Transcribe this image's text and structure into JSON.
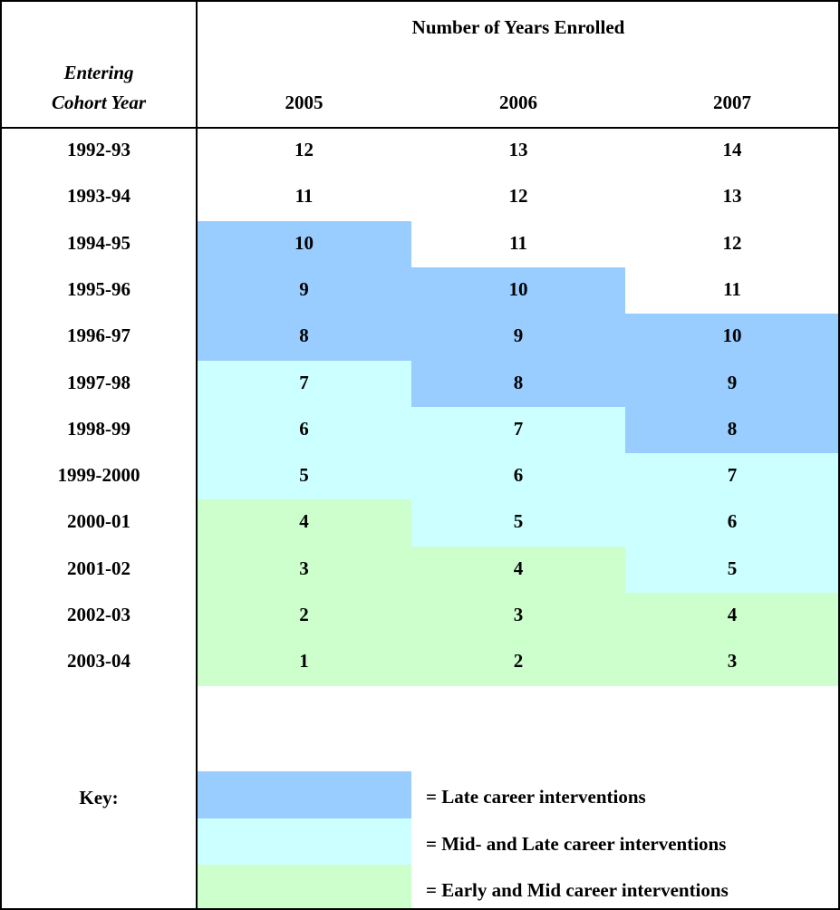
{
  "header": {
    "title": "Number of Years Enrolled",
    "row_header": [
      "Entering",
      "Cohort Year"
    ],
    "columns": [
      "2005",
      "2006",
      "2007"
    ]
  },
  "table": {
    "rows": [
      {
        "cohort": "1992-93",
        "values": [
          12,
          13,
          14
        ],
        "colors": [
          "#ffffff",
          "#ffffff",
          "#ffffff"
        ]
      },
      {
        "cohort": "1993-94",
        "values": [
          11,
          12,
          13
        ],
        "colors": [
          "#ffffff",
          "#ffffff",
          "#ffffff"
        ]
      },
      {
        "cohort": "1994-95",
        "values": [
          10,
          11,
          12
        ],
        "colors": [
          "#99ccff",
          "#ffffff",
          "#ffffff"
        ]
      },
      {
        "cohort": "1995-96",
        "values": [
          9,
          10,
          11
        ],
        "colors": [
          "#99ccff",
          "#99ccff",
          "#ffffff"
        ]
      },
      {
        "cohort": "1996-97",
        "values": [
          8,
          9,
          10
        ],
        "colors": [
          "#99ccff",
          "#99ccff",
          "#99ccff"
        ]
      },
      {
        "cohort": "1997-98",
        "values": [
          7,
          8,
          9
        ],
        "colors": [
          "#ccffff",
          "#99ccff",
          "#99ccff"
        ]
      },
      {
        "cohort": "1998-99",
        "values": [
          6,
          7,
          8
        ],
        "colors": [
          "#ccffff",
          "#ccffff",
          "#99ccff"
        ]
      },
      {
        "cohort": "1999-2000",
        "values": [
          5,
          6,
          7
        ],
        "colors": [
          "#ccffff",
          "#ccffff",
          "#ccffff"
        ]
      },
      {
        "cohort": "2000-01",
        "values": [
          4,
          5,
          6
        ],
        "colors": [
          "#ccffcc",
          "#ccffff",
          "#ccffff"
        ]
      },
      {
        "cohort": "2001-02",
        "values": [
          3,
          4,
          5
        ],
        "colors": [
          "#ccffcc",
          "#ccffcc",
          "#ccffff"
        ]
      },
      {
        "cohort": "2002-03",
        "values": [
          2,
          3,
          4
        ],
        "colors": [
          "#ccffcc",
          "#ccffcc",
          "#ccffcc"
        ]
      },
      {
        "cohort": "2003-04",
        "values": [
          1,
          2,
          3
        ],
        "colors": [
          "#ccffcc",
          "#ccffcc",
          "#ccffcc"
        ]
      }
    ]
  },
  "key": {
    "label": "Key:",
    "entries": [
      {
        "color": "#99ccff",
        "text": "= Late career interventions"
      },
      {
        "color": "#ccffff",
        "text": "= Mid- and Late career interventions"
      },
      {
        "color": "#ccffcc",
        "text": "= Early and Mid career interventions"
      }
    ]
  }
}
